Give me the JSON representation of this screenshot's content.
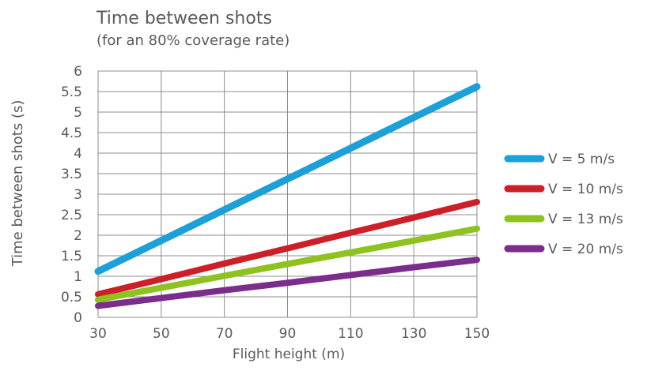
{
  "chart_data": {
    "type": "line",
    "title": "Time between shots",
    "subtitle": "(for an 80% coverage rate)",
    "xlabel": "Flight height (m)",
    "ylabel": "Time between shots (s)",
    "x": [
      30,
      50,
      70,
      90,
      110,
      130,
      150
    ],
    "xlim": [
      30,
      150
    ],
    "ylim": [
      0,
      6
    ],
    "x_ticks": [
      "30",
      "50",
      "70",
      "90",
      "110",
      "130",
      "150"
    ],
    "y_ticks": [
      "0",
      "0.5",
      "1",
      "1.5",
      "2",
      "2.5",
      "3",
      "3.5",
      "4",
      "4.5",
      "5",
      "5.5",
      "6"
    ],
    "grid": true,
    "legend_position": "right",
    "series": [
      {
        "name": "V = 5 m/s",
        "color": "#1ba0d8",
        "values": [
          1.12,
          1.87,
          2.62,
          3.37,
          4.12,
          4.87,
          5.62
        ]
      },
      {
        "name": "V = 10 m/s",
        "color": "#cc1f27",
        "values": [
          0.56,
          0.93,
          1.31,
          1.68,
          2.06,
          2.43,
          2.81
        ]
      },
      {
        "name": "V = 13 m/s",
        "color": "#8dc21f",
        "values": [
          0.43,
          0.72,
          1.01,
          1.3,
          1.58,
          1.87,
          2.16
        ]
      },
      {
        "name": "V = 20 m/s",
        "color": "#7b2d8b",
        "values": [
          0.28,
          0.47,
          0.66,
          0.84,
          1.03,
          1.22,
          1.4
        ]
      }
    ]
  }
}
